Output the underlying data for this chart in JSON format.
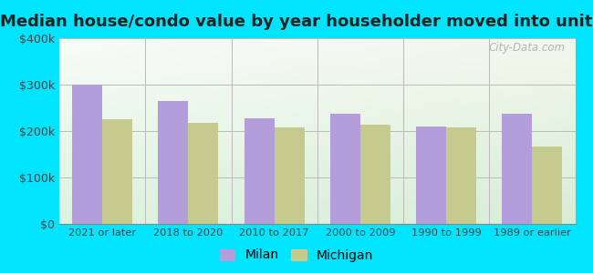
{
  "title": "Median house/condo value by year householder moved into unit",
  "categories": [
    "2021 or later",
    "2018 to 2020",
    "2010 to 2017",
    "2000 to 2009",
    "1990 to 1999",
    "1989 or earlier"
  ],
  "milan_values": [
    300000,
    265000,
    228000,
    237000,
    210000,
    237000
  ],
  "michigan_values": [
    225000,
    218000,
    207000,
    213000,
    208000,
    167000
  ],
  "milan_color": "#b39ddb",
  "michigan_color": "#c5ca8e",
  "background_outer": "#00e5ff",
  "ylim": [
    0,
    400000
  ],
  "yticks": [
    0,
    100000,
    200000,
    300000,
    400000
  ],
  "ytick_labels": [
    "$0",
    "$100k",
    "$200k",
    "$300k",
    "$400k"
  ],
  "bar_width": 0.35,
  "title_fontsize": 13,
  "legend_labels": [
    "Milan",
    "Michigan"
  ],
  "grid_color": "#bbbbbb",
  "watermark_text": "City-Data.com",
  "watermark_color": "#aaaaaa"
}
